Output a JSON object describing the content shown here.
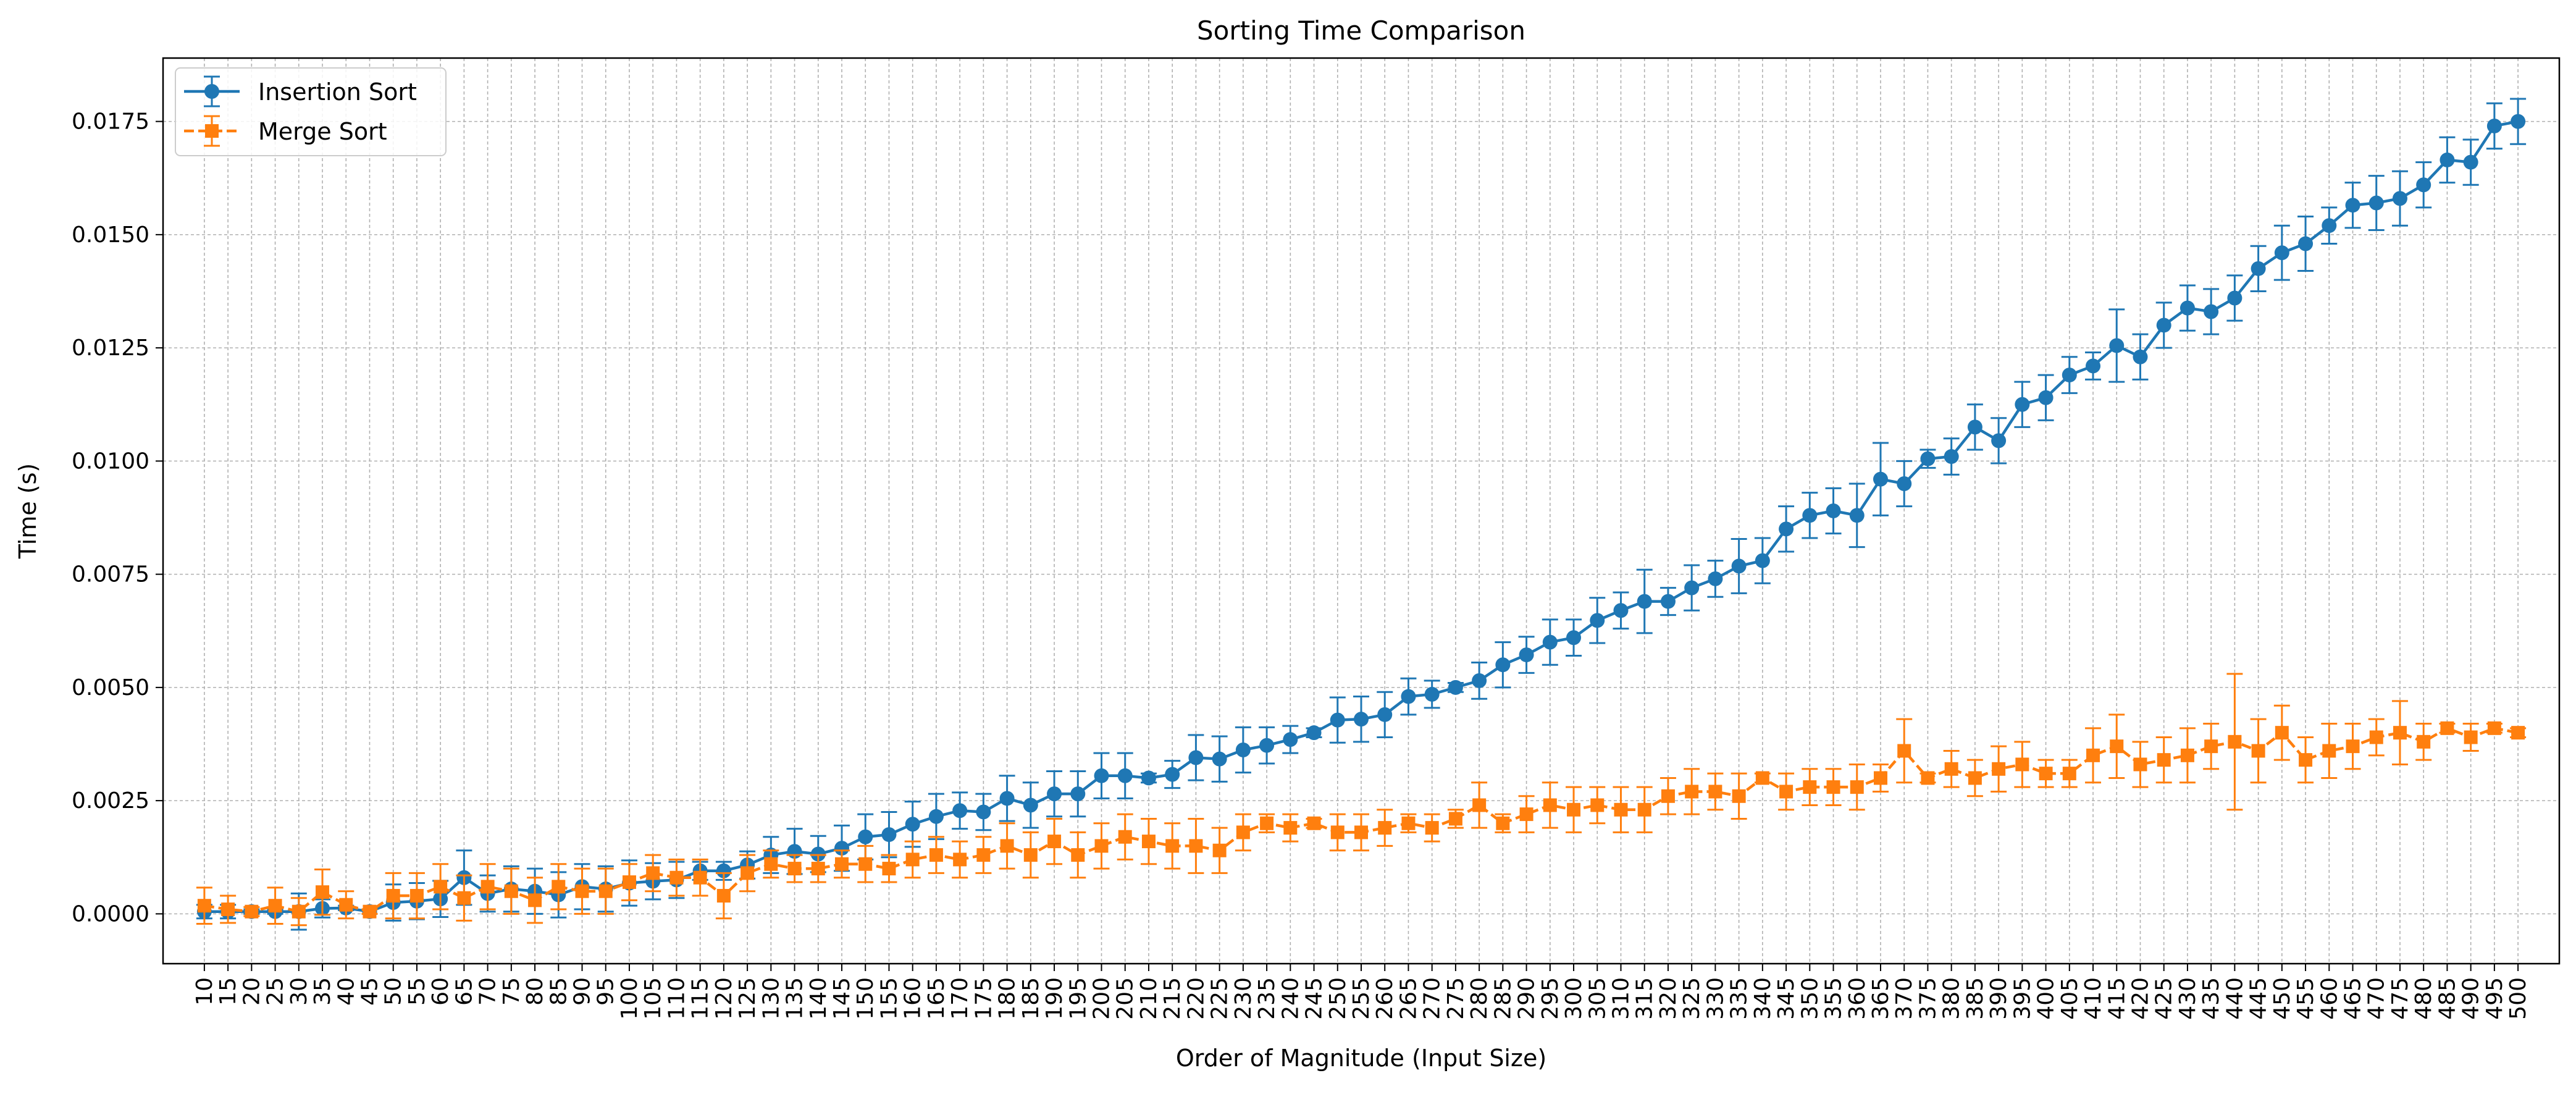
{
  "chart_data": {
    "type": "line",
    "title": "Sorting Time Comparison",
    "xlabel": "Order of Magnitude (Input Size)",
    "ylabel": "Time (s)",
    "ylim": [
      -0.0011,
      0.0189
    ],
    "grid": true,
    "legend_position": "top-left",
    "ytick_labels": [
      "0.0000",
      "0.0025",
      "0.0050",
      "0.0075",
      "0.0100",
      "0.0125",
      "0.0150",
      "0.0175"
    ],
    "yticks": [
      0,
      0.0025,
      0.005,
      0.0075,
      0.01,
      0.0125,
      0.015,
      0.0175
    ],
    "x": [
      10,
      15,
      20,
      25,
      30,
      35,
      40,
      45,
      50,
      55,
      60,
      65,
      70,
      75,
      80,
      85,
      90,
      95,
      100,
      105,
      110,
      115,
      120,
      125,
      130,
      135,
      140,
      145,
      150,
      155,
      160,
      165,
      170,
      175,
      180,
      185,
      190,
      195,
      200,
      205,
      210,
      215,
      220,
      225,
      230,
      235,
      240,
      245,
      250,
      255,
      260,
      265,
      270,
      275,
      280,
      285,
      290,
      295,
      300,
      305,
      310,
      315,
      320,
      325,
      330,
      335,
      340,
      345,
      350,
      355,
      360,
      365,
      370,
      375,
      380,
      385,
      390,
      395,
      400,
      405,
      410,
      415,
      420,
      425,
      430,
      435,
      440,
      445,
      450,
      455,
      460,
      465,
      470,
      475,
      480,
      485,
      490,
      495,
      500
    ],
    "series": [
      {
        "name": "Insertion Sort",
        "color": "#1f77b4",
        "marker": "circle",
        "line_style": "solid",
        "values": [
          5e-05,
          5e-05,
          5e-05,
          5e-05,
          5e-05,
          0.00012,
          0.00013,
          5e-05,
          0.00025,
          0.00028,
          0.00033,
          0.0008,
          0.00045,
          0.00055,
          0.0005,
          0.00042,
          0.0006,
          0.00055,
          0.00068,
          0.00072,
          0.00075,
          0.00095,
          0.00095,
          0.00108,
          0.0013,
          0.00138,
          0.00132,
          0.00145,
          0.0017,
          0.00175,
          0.00198,
          0.00215,
          0.00228,
          0.00225,
          0.00255,
          0.0024,
          0.00265,
          0.00265,
          0.00305,
          0.00305,
          0.003,
          0.00308,
          0.00345,
          0.00342,
          0.00362,
          0.00372,
          0.00385,
          0.004,
          0.00428,
          0.0043,
          0.0044,
          0.0048,
          0.00485,
          0.005,
          0.00515,
          0.0055,
          0.00572,
          0.006,
          0.0061,
          0.00648,
          0.0067,
          0.0069,
          0.0069,
          0.0072,
          0.0074,
          0.00768,
          0.0078,
          0.0085,
          0.0088,
          0.0089,
          0.0088,
          0.0096,
          0.0095,
          0.01005,
          0.0101,
          0.01075,
          0.01045,
          0.01125,
          0.0114,
          0.0119,
          0.0121,
          0.01255,
          0.0123,
          0.013,
          0.01338,
          0.0133,
          0.0136,
          0.01425,
          0.0146,
          0.0148,
          0.0152,
          0.01565,
          0.0157,
          0.0158,
          0.0161,
          0.01665,
          0.0166,
          0.0174,
          0.0175
        ],
        "errors": [
          0.00015,
          0.00015,
          5e-05,
          5e-05,
          0.0004,
          0.0002,
          5e-05,
          5e-05,
          0.0004,
          0.0004,
          0.0004,
          0.0006,
          0.0004,
          0.0005,
          0.0005,
          0.0005,
          0.0005,
          0.0005,
          0.0005,
          0.0004,
          0.0004,
          0.0002,
          0.0002,
          0.0003,
          0.0004,
          0.0005,
          0.0004,
          0.0005,
          0.0005,
          0.0005,
          0.0005,
          0.0005,
          0.0004,
          0.0004,
          0.0005,
          0.0005,
          0.0005,
          0.0005,
          0.0005,
          0.0005,
          0.0001,
          0.0003,
          0.0005,
          0.0005,
          0.0005,
          0.0004,
          0.0003,
          0.0001,
          0.0005,
          0.0005,
          0.0005,
          0.0004,
          0.0003,
          0.0001,
          0.0004,
          0.0005,
          0.0004,
          0.0005,
          0.0004,
          0.0005,
          0.0004,
          0.0007,
          0.0003,
          0.0005,
          0.0004,
          0.0006,
          0.0005,
          0.0005,
          0.0005,
          0.0005,
          0.0007,
          0.0008,
          0.0005,
          0.0002,
          0.0004,
          0.0005,
          0.0005,
          0.0005,
          0.0005,
          0.0004,
          0.0003,
          0.0008,
          0.0005,
          0.0005,
          0.0005,
          0.0005,
          0.0005,
          0.0005,
          0.0006,
          0.0006,
          0.0004,
          0.0005,
          0.0006,
          0.0006,
          0.0005,
          0.0005,
          0.0005,
          0.0005,
          0.0005
        ]
      },
      {
        "name": "Merge Sort",
        "color": "#ff7f0e",
        "marker": "square",
        "line_style": "dashed",
        "values": [
          0.00018,
          0.0001,
          5e-05,
          0.00018,
          5e-05,
          0.00048,
          0.0002,
          5e-05,
          0.0004,
          0.0004,
          0.0006,
          0.00035,
          0.0006,
          0.0005,
          0.0003,
          0.0006,
          0.0005,
          0.0005,
          0.0007,
          0.0009,
          0.0008,
          0.0008,
          0.0004,
          0.0009,
          0.0011,
          0.001,
          0.001,
          0.0011,
          0.0011,
          0.001,
          0.0012,
          0.0013,
          0.0012,
          0.0013,
          0.0015,
          0.0013,
          0.0016,
          0.0013,
          0.0015,
          0.0017,
          0.0016,
          0.0015,
          0.0015,
          0.0014,
          0.0018,
          0.002,
          0.0019,
          0.002,
          0.0018,
          0.0018,
          0.0019,
          0.002,
          0.0019,
          0.0021,
          0.0024,
          0.002,
          0.0022,
          0.0024,
          0.0023,
          0.0024,
          0.0023,
          0.0023,
          0.0026,
          0.0027,
          0.0027,
          0.0026,
          0.003,
          0.0027,
          0.0028,
          0.0028,
          0.0028,
          0.003,
          0.0036,
          0.003,
          0.0032,
          0.003,
          0.0032,
          0.0033,
          0.0031,
          0.0031,
          0.0035,
          0.0037,
          0.0033,
          0.0034,
          0.0035,
          0.0037,
          0.0038,
          0.0036,
          0.004,
          0.0034,
          0.0036,
          0.0037,
          0.0039,
          0.004,
          0.0038,
          0.0041,
          0.0039,
          0.0041,
          0.004
        ],
        "errors": [
          0.0004,
          0.0003,
          0.0001,
          0.0004,
          0.0003,
          0.0005,
          0.0003,
          5e-05,
          0.0005,
          0.0005,
          0.0005,
          0.0005,
          0.0005,
          0.0005,
          0.0005,
          0.0005,
          0.0005,
          0.0005,
          0.0004,
          0.0004,
          0.0004,
          0.0004,
          0.0005,
          0.0004,
          0.0003,
          0.0003,
          0.0003,
          0.0003,
          0.0004,
          0.0003,
          0.0004,
          0.0004,
          0.0004,
          0.0004,
          0.0005,
          0.0005,
          0.0005,
          0.0005,
          0.0005,
          0.0005,
          0.0005,
          0.0005,
          0.0006,
          0.0005,
          0.0004,
          0.0002,
          0.0003,
          0.0001,
          0.0004,
          0.0004,
          0.0004,
          0.0002,
          0.0003,
          0.0002,
          0.0005,
          0.0002,
          0.0004,
          0.0005,
          0.0005,
          0.0004,
          0.0005,
          0.0005,
          0.0004,
          0.0005,
          0.0004,
          0.0005,
          0.0001,
          0.0004,
          0.0004,
          0.0004,
          0.0005,
          0.0003,
          0.0007,
          0.0001,
          0.0004,
          0.0004,
          0.0005,
          0.0005,
          0.0003,
          0.0003,
          0.0006,
          0.0007,
          0.0005,
          0.0005,
          0.0006,
          0.0005,
          0.0015,
          0.0007,
          0.0006,
          0.0005,
          0.0006,
          0.0005,
          0.0004,
          0.0007,
          0.0004,
          0.0001,
          0.0003,
          0.0001,
          0.0001
        ]
      }
    ]
  }
}
